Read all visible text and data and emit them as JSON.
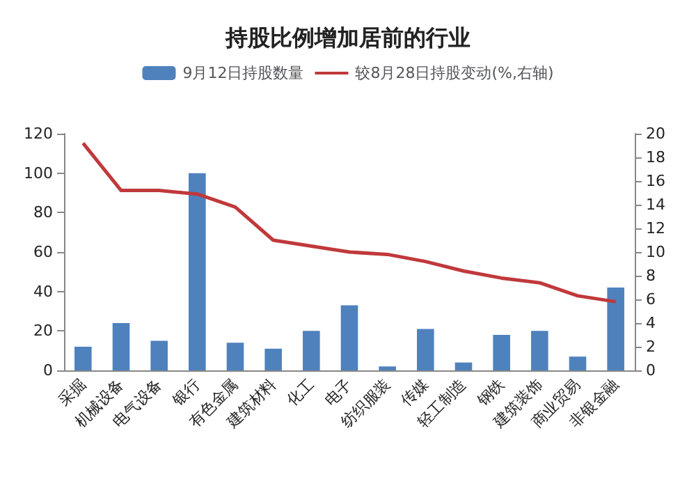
{
  "chart_data": {
    "type": "bar",
    "title": "持股比例增加居前的行业",
    "categories": [
      "采掘",
      "机械设备",
      "电气设备",
      "银行",
      "有色金属",
      "建筑材料",
      "化工",
      "电子",
      "纺织服装",
      "传媒",
      "轻工制造",
      "钢铁",
      "建筑装饰",
      "商业贸易",
      "非银金融"
    ],
    "series": [
      {
        "name": "9月12日持股数量",
        "color": "#4f81bd",
        "values": [
          12,
          24,
          15,
          100,
          14,
          11,
          20,
          33,
          2,
          21,
          4,
          18,
          20,
          7,
          42
        ]
      },
      {
        "name": "较8月28日持股变动(%,右轴)",
        "type": "line",
        "axis": "y2",
        "color": "#c0393b",
        "values": [
          19.2,
          15.2,
          15.2,
          14.9,
          13.8,
          11,
          10.5,
          10,
          9.8,
          9.2,
          8.4,
          7.8,
          7.4,
          6.3,
          5.8
        ]
      }
    ],
    "ylim": [
      0,
      120
    ],
    "yticks": [
      0,
      20,
      40,
      60,
      80,
      100,
      120
    ],
    "y2lim": [
      0,
      20
    ],
    "y2ticks": [
      0,
      2,
      4,
      6,
      8,
      10,
      12,
      14,
      16,
      18,
      20
    ],
    "legend": "top",
    "grid": false,
    "marker": "none",
    "line_style": "solid"
  }
}
